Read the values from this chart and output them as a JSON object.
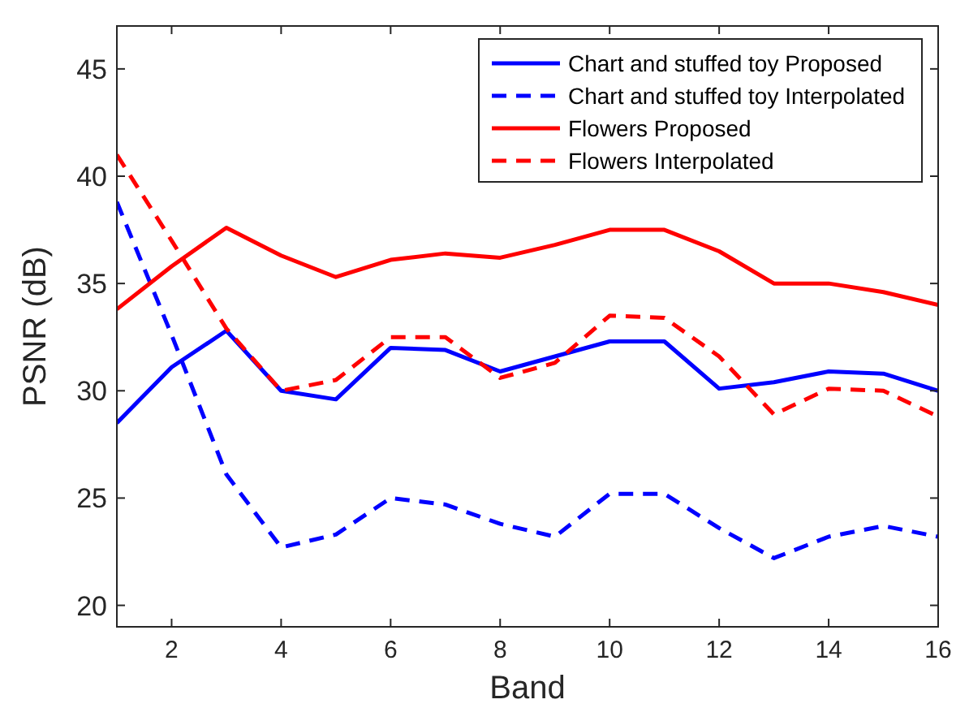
{
  "chart_data": {
    "type": "line",
    "xlabel": "Band",
    "ylabel": "PSNR (dB)",
    "x": [
      1,
      2,
      3,
      4,
      5,
      6,
      7,
      8,
      9,
      10,
      11,
      12,
      13,
      14,
      15,
      16
    ],
    "xlim": [
      1,
      16
    ],
    "xticks": [
      2,
      4,
      6,
      8,
      10,
      12,
      14,
      16
    ],
    "ylim": [
      19,
      47
    ],
    "yticks": [
      20,
      25,
      30,
      35,
      40,
      45
    ],
    "grid": false,
    "legend": "top right",
    "series": [
      {
        "name": "Chart and stuffed toy Proposed",
        "color": "#0000ff",
        "line_style": "solid",
        "values": [
          28.5,
          31.1,
          32.8,
          30.0,
          29.6,
          32.0,
          31.9,
          30.9,
          31.6,
          32.3,
          32.3,
          30.1,
          30.4,
          30.9,
          30.8,
          30.0
        ]
      },
      {
        "name": "Chart and stuffed toy Interpolated",
        "color": "#0000ff",
        "line_style": "dashed",
        "values": [
          38.8,
          32.6,
          26.1,
          22.7,
          23.3,
          25.0,
          24.7,
          23.8,
          23.2,
          25.2,
          25.2,
          23.6,
          22.2,
          23.2,
          23.7,
          23.2
        ]
      },
      {
        "name": "Flowers Proposed",
        "color": "#ff0000",
        "line_style": "solid",
        "values": [
          33.8,
          35.8,
          37.6,
          36.3,
          35.3,
          36.1,
          36.4,
          36.2,
          36.8,
          37.5,
          37.5,
          36.5,
          35.0,
          35.0,
          34.6,
          34.0
        ]
      },
      {
        "name": "Flowers Interpolated",
        "color": "#ff0000",
        "line_style": "dashed",
        "values": [
          41.0,
          37.0,
          32.9,
          30.0,
          30.5,
          32.5,
          32.5,
          30.6,
          31.3,
          33.5,
          33.4,
          31.6,
          28.9,
          30.1,
          30.0,
          28.8
        ]
      }
    ]
  }
}
